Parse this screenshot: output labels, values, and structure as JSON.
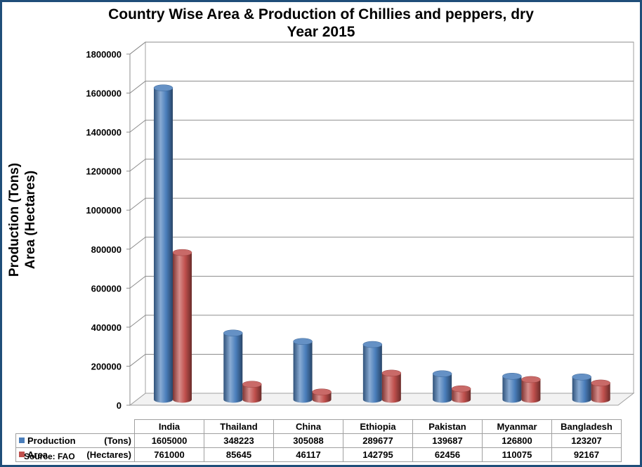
{
  "title_line1": "Country Wise Area & Production of Chillies and peppers, dry",
  "title_line2": "Year 2015",
  "ylabel_line1": "Production (Tons)",
  "ylabel_line2": "Area (Hectares)",
  "source": "Source: FAO",
  "chart_data": {
    "type": "bar",
    "title": "Country Wise Area & Production of Chillies and peppers, dry Year 2015",
    "ylabel": "Production (Tons) Area (Hectares)",
    "ylim": [
      0,
      1800000
    ],
    "yticks": [
      "0",
      "200000",
      "400000",
      "600000",
      "800000",
      "1000000",
      "1200000",
      "1400000",
      "1600000",
      "1800000"
    ],
    "grid": true,
    "legend": "data table below chart",
    "categories": [
      "India",
      "Thailand",
      "China",
      "Ethiopia",
      "Pakistan",
      "Myanmar",
      "Bangladesh"
    ],
    "series": [
      {
        "name": "Production",
        "unit": "(Tons)",
        "color": "#4a7ebb",
        "values": [
          1605000,
          348223,
          305088,
          289677,
          139687,
          126800,
          123207
        ]
      },
      {
        "name": "Area",
        "unit": "(Hectares)",
        "color": "#c0504d",
        "values": [
          761000,
          85645,
          46117,
          142795,
          62456,
          110075,
          92167
        ]
      }
    ]
  }
}
